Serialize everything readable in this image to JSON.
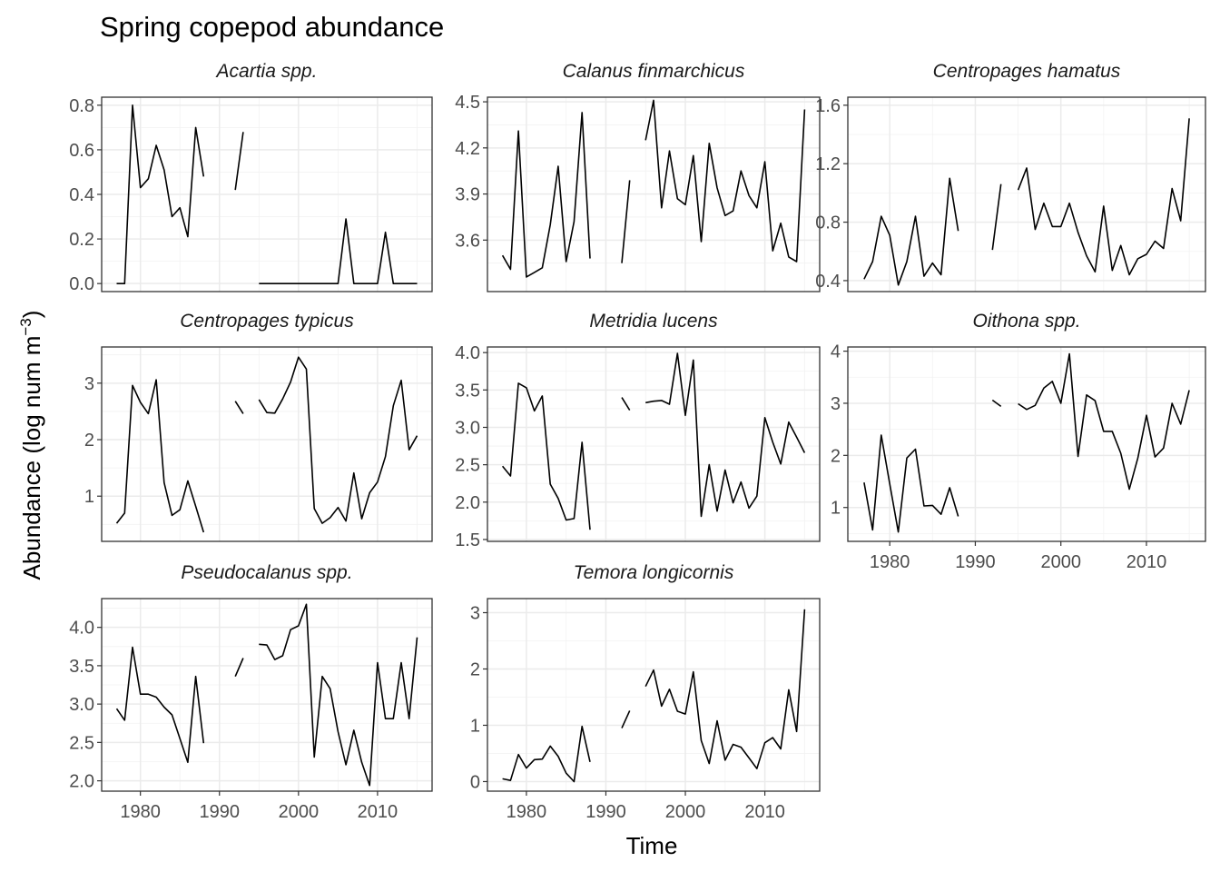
{
  "chart_data": {
    "type": "line",
    "title": "Spring copepod abundance",
    "xlabel": "Time",
    "ylabel": "Abundance (log num m",
    "ylabel_sup": "−3",
    "ylabel_close": ")",
    "grid": true,
    "facet_layout": "3 columns x 3 rows",
    "line_color": "#000000",
    "xlim": [
      1975.1,
      2016.9
    ],
    "x_breaks": [
      1980,
      1990,
      2000,
      2010
    ],
    "panels": [
      {
        "name": "Acartia spp.",
        "ylim": [
          -0.036,
          0.836
        ],
        "y_breaks": [
          0.0,
          0.2,
          0.4,
          0.6,
          0.8
        ],
        "y_tick_labels": [
          "0.0",
          "0.2",
          "0.4",
          "0.6",
          "0.8"
        ],
        "show_x_axis": false,
        "x": [
          1977,
          1978,
          1979,
          1980,
          1981,
          1982,
          1983,
          1984,
          1985,
          1986,
          1987,
          1988,
          1989,
          1990,
          1991,
          1992,
          1993,
          1994,
          1995,
          1996,
          1997,
          1998,
          1999,
          2000,
          2001,
          2002,
          2003,
          2004,
          2005,
          2006,
          2007,
          2008,
          2009,
          2010,
          2011,
          2012,
          2013,
          2014,
          2015
        ],
        "y": [
          0.0,
          0.0,
          0.8,
          0.43,
          0.47,
          0.62,
          0.51,
          0.3,
          0.34,
          0.21,
          0.7,
          0.48,
          null,
          null,
          null,
          0.42,
          0.68,
          null,
          0.0,
          0.0,
          0.0,
          0.0,
          0.0,
          0.0,
          0.0,
          0.0,
          0.0,
          0.0,
          0.0,
          0.29,
          0.0,
          0.0,
          0.0,
          0.0,
          0.23,
          0.0,
          0.0,
          0.0,
          0.0
        ]
      },
      {
        "name": "Calanus finmarchicus",
        "ylim": [
          3.265,
          4.53
        ],
        "y_breaks": [
          3.6,
          3.9,
          4.2,
          4.5
        ],
        "y_tick_labels": [
          "3.6",
          "3.9",
          "4.2",
          "4.5"
        ],
        "show_x_axis": false,
        "x": [
          1977,
          1978,
          1979,
          1980,
          1981,
          1982,
          1983,
          1984,
          1985,
          1986,
          1987,
          1988,
          1989,
          1990,
          1991,
          1992,
          1993,
          1994,
          1995,
          1996,
          1997,
          1998,
          1999,
          2000,
          2001,
          2002,
          2003,
          2004,
          2005,
          2006,
          2007,
          2008,
          2009,
          2010,
          2011,
          2012,
          2013,
          2014,
          2015
        ],
        "y": [
          3.5,
          3.41,
          4.31,
          3.36,
          3.39,
          3.42,
          3.7,
          4.08,
          3.46,
          3.72,
          4.43,
          3.48,
          null,
          null,
          null,
          3.45,
          3.99,
          null,
          4.25,
          4.51,
          3.81,
          4.18,
          3.87,
          3.83,
          4.15,
          3.59,
          4.23,
          3.94,
          3.76,
          3.79,
          4.05,
          3.89,
          3.81,
          4.11,
          3.53,
          3.71,
          3.49,
          3.46,
          4.45
        ]
      },
      {
        "name": "Centropages hamatus",
        "ylim": [
          0.325,
          1.655
        ],
        "y_breaks": [
          0.4,
          0.8,
          1.2,
          1.6
        ],
        "y_tick_labels": [
          "0.4",
          "0.8",
          "1.2",
          "1.6"
        ],
        "show_x_axis": false,
        "x": [
          1977,
          1978,
          1979,
          1980,
          1981,
          1982,
          1983,
          1984,
          1985,
          1986,
          1987,
          1988,
          1989,
          1990,
          1991,
          1992,
          1993,
          1994,
          1995,
          1996,
          1997,
          1998,
          1999,
          2000,
          2001,
          2002,
          2003,
          2004,
          2005,
          2006,
          2007,
          2008,
          2009,
          2010,
          2011,
          2012,
          2013,
          2014,
          2015
        ],
        "y": [
          0.41,
          0.53,
          0.84,
          0.71,
          0.37,
          0.53,
          0.84,
          0.43,
          0.52,
          0.44,
          1.1,
          0.74,
          null,
          null,
          null,
          0.61,
          1.06,
          null,
          1.02,
          1.17,
          0.75,
          0.93,
          0.77,
          0.77,
          0.93,
          0.73,
          0.57,
          0.46,
          0.91,
          0.47,
          0.64,
          0.44,
          0.55,
          0.58,
          0.67,
          0.62,
          1.03,
          0.81,
          1.51
        ]
      },
      {
        "name": "Centropages typicus",
        "ylim": [
          0.2,
          3.64
        ],
        "y_breaks": [
          1,
          2,
          3
        ],
        "y_tick_labels": [
          "1",
          "2",
          "3"
        ],
        "show_x_axis": false,
        "x": [
          1977,
          1978,
          1979,
          1980,
          1981,
          1982,
          1983,
          1984,
          1985,
          1986,
          1987,
          1988,
          1989,
          1990,
          1991,
          1992,
          1993,
          1994,
          1995,
          1996,
          1997,
          1998,
          1999,
          2000,
          2001,
          2002,
          2003,
          2004,
          2005,
          2006,
          2007,
          2008,
          2009,
          2010,
          2011,
          2012,
          2013,
          2014,
          2015
        ],
        "y": [
          0.52,
          0.7,
          2.96,
          2.66,
          2.46,
          3.06,
          1.24,
          0.66,
          0.76,
          1.27,
          0.82,
          0.36,
          null,
          null,
          null,
          2.68,
          2.46,
          null,
          2.71,
          2.48,
          2.47,
          2.72,
          3.02,
          3.46,
          3.25,
          0.78,
          0.52,
          0.62,
          0.8,
          0.56,
          1.41,
          0.6,
          1.06,
          1.25,
          1.7,
          2.6,
          3.05,
          1.82,
          2.07
        ]
      },
      {
        "name": "Metridia lucens",
        "ylim": [
          1.475,
          4.075
        ],
        "y_breaks": [
          1.5,
          2.0,
          2.5,
          3.0,
          3.5,
          4.0
        ],
        "y_tick_labels": [
          "1.5",
          "2.0",
          "2.5",
          "3.0",
          "3.5",
          "4.0"
        ],
        "show_x_axis": false,
        "x": [
          1977,
          1978,
          1979,
          1980,
          1981,
          1982,
          1983,
          1984,
          1985,
          1986,
          1987,
          1988,
          1989,
          1990,
          1991,
          1992,
          1993,
          1994,
          1995,
          1996,
          1997,
          1998,
          1999,
          2000,
          2001,
          2002,
          2003,
          2004,
          2005,
          2006,
          2007,
          2008,
          2009,
          2010,
          2011,
          2012,
          2013,
          2014,
          2015
        ],
        "y": [
          2.48,
          2.35,
          3.59,
          3.53,
          3.22,
          3.42,
          2.24,
          2.05,
          1.76,
          1.78,
          2.8,
          1.63,
          null,
          null,
          null,
          3.4,
          3.23,
          null,
          3.33,
          3.35,
          3.36,
          3.31,
          3.99,
          3.16,
          3.9,
          1.81,
          2.5,
          1.88,
          2.43,
          1.99,
          2.27,
          1.92,
          2.08,
          3.13,
          2.8,
          2.51,
          3.07,
          2.87,
          2.66
        ]
      },
      {
        "name": "Oithona spp.",
        "ylim": [
          0.35,
          4.08
        ],
        "y_breaks": [
          1,
          2,
          3,
          4
        ],
        "y_tick_labels": [
          "1",
          "2",
          "3",
          "4"
        ],
        "show_x_axis": true,
        "x": [
          1977,
          1978,
          1979,
          1980,
          1981,
          1982,
          1983,
          1984,
          1985,
          1986,
          1987,
          1988,
          1989,
          1990,
          1991,
          1992,
          1993,
          1994,
          1995,
          1996,
          1997,
          1998,
          1999,
          2000,
          2001,
          2002,
          2003,
          2004,
          2005,
          2006,
          2007,
          2008,
          2009,
          2010,
          2011,
          2012,
          2013,
          2014,
          2015
        ],
        "y": [
          1.48,
          0.57,
          2.39,
          1.45,
          0.53,
          1.95,
          2.12,
          1.03,
          1.04,
          0.87,
          1.38,
          0.83,
          null,
          null,
          null,
          3.06,
          2.94,
          null,
          2.99,
          2.88,
          2.96,
          3.29,
          3.42,
          3.0,
          3.95,
          1.98,
          3.16,
          3.05,
          2.46,
          2.46,
          2.04,
          1.35,
          1.95,
          2.77,
          1.97,
          2.14,
          3.0,
          2.6,
          3.25
        ]
      },
      {
        "name": "Pseudocalanus spp.",
        "ylim": [
          1.865,
          4.375
        ],
        "y_breaks": [
          2.0,
          2.5,
          3.0,
          3.5,
          4.0
        ],
        "y_tick_labels": [
          "2.0",
          "2.5",
          "3.0",
          "3.5",
          "4.0"
        ],
        "show_x_axis": true,
        "x": [
          1977,
          1978,
          1979,
          1980,
          1981,
          1982,
          1983,
          1984,
          1985,
          1986,
          1987,
          1988,
          1989,
          1990,
          1991,
          1992,
          1993,
          1994,
          1995,
          1996,
          1997,
          1998,
          1999,
          2000,
          2001,
          2002,
          2003,
          2004,
          2005,
          2006,
          2007,
          2008,
          2009,
          2010,
          2011,
          2012,
          2013,
          2014,
          2015
        ],
        "y": [
          2.94,
          2.79,
          3.74,
          3.13,
          3.13,
          3.09,
          2.96,
          2.86,
          2.55,
          2.24,
          3.36,
          2.49,
          null,
          null,
          null,
          3.36,
          3.6,
          null,
          3.78,
          3.77,
          3.58,
          3.63,
          3.97,
          4.02,
          4.3,
          2.31,
          3.36,
          3.2,
          2.64,
          2.21,
          2.66,
          2.24,
          1.94,
          3.54,
          2.81,
          2.81,
          3.54,
          2.81,
          3.87
        ]
      },
      {
        "name": "Temora longicornis",
        "ylim": [
          -0.17,
          3.25
        ],
        "y_breaks": [
          0,
          1,
          2,
          3
        ],
        "y_tick_labels": [
          "0",
          "1",
          "2",
          "3"
        ],
        "show_x_axis": true,
        "x": [
          1977,
          1978,
          1979,
          1980,
          1981,
          1982,
          1983,
          1984,
          1985,
          1986,
          1987,
          1988,
          1989,
          1990,
          1991,
          1992,
          1993,
          1994,
          1995,
          1996,
          1997,
          1998,
          1999,
          2000,
          2001,
          2002,
          2003,
          2004,
          2005,
          2006,
          2007,
          2008,
          2009,
          2010,
          2011,
          2012,
          2013,
          2014,
          2015
        ],
        "y": [
          0.05,
          0.02,
          0.48,
          0.24,
          0.39,
          0.4,
          0.63,
          0.45,
          0.15,
          0.0,
          0.98,
          0.35,
          null,
          null,
          null,
          0.95,
          1.26,
          null,
          1.69,
          1.98,
          1.34,
          1.64,
          1.25,
          1.2,
          1.95,
          0.73,
          0.32,
          1.08,
          0.38,
          0.66,
          0.61,
          0.42,
          0.23,
          0.69,
          0.78,
          0.58,
          1.63,
          0.89,
          3.06
        ]
      }
    ]
  }
}
